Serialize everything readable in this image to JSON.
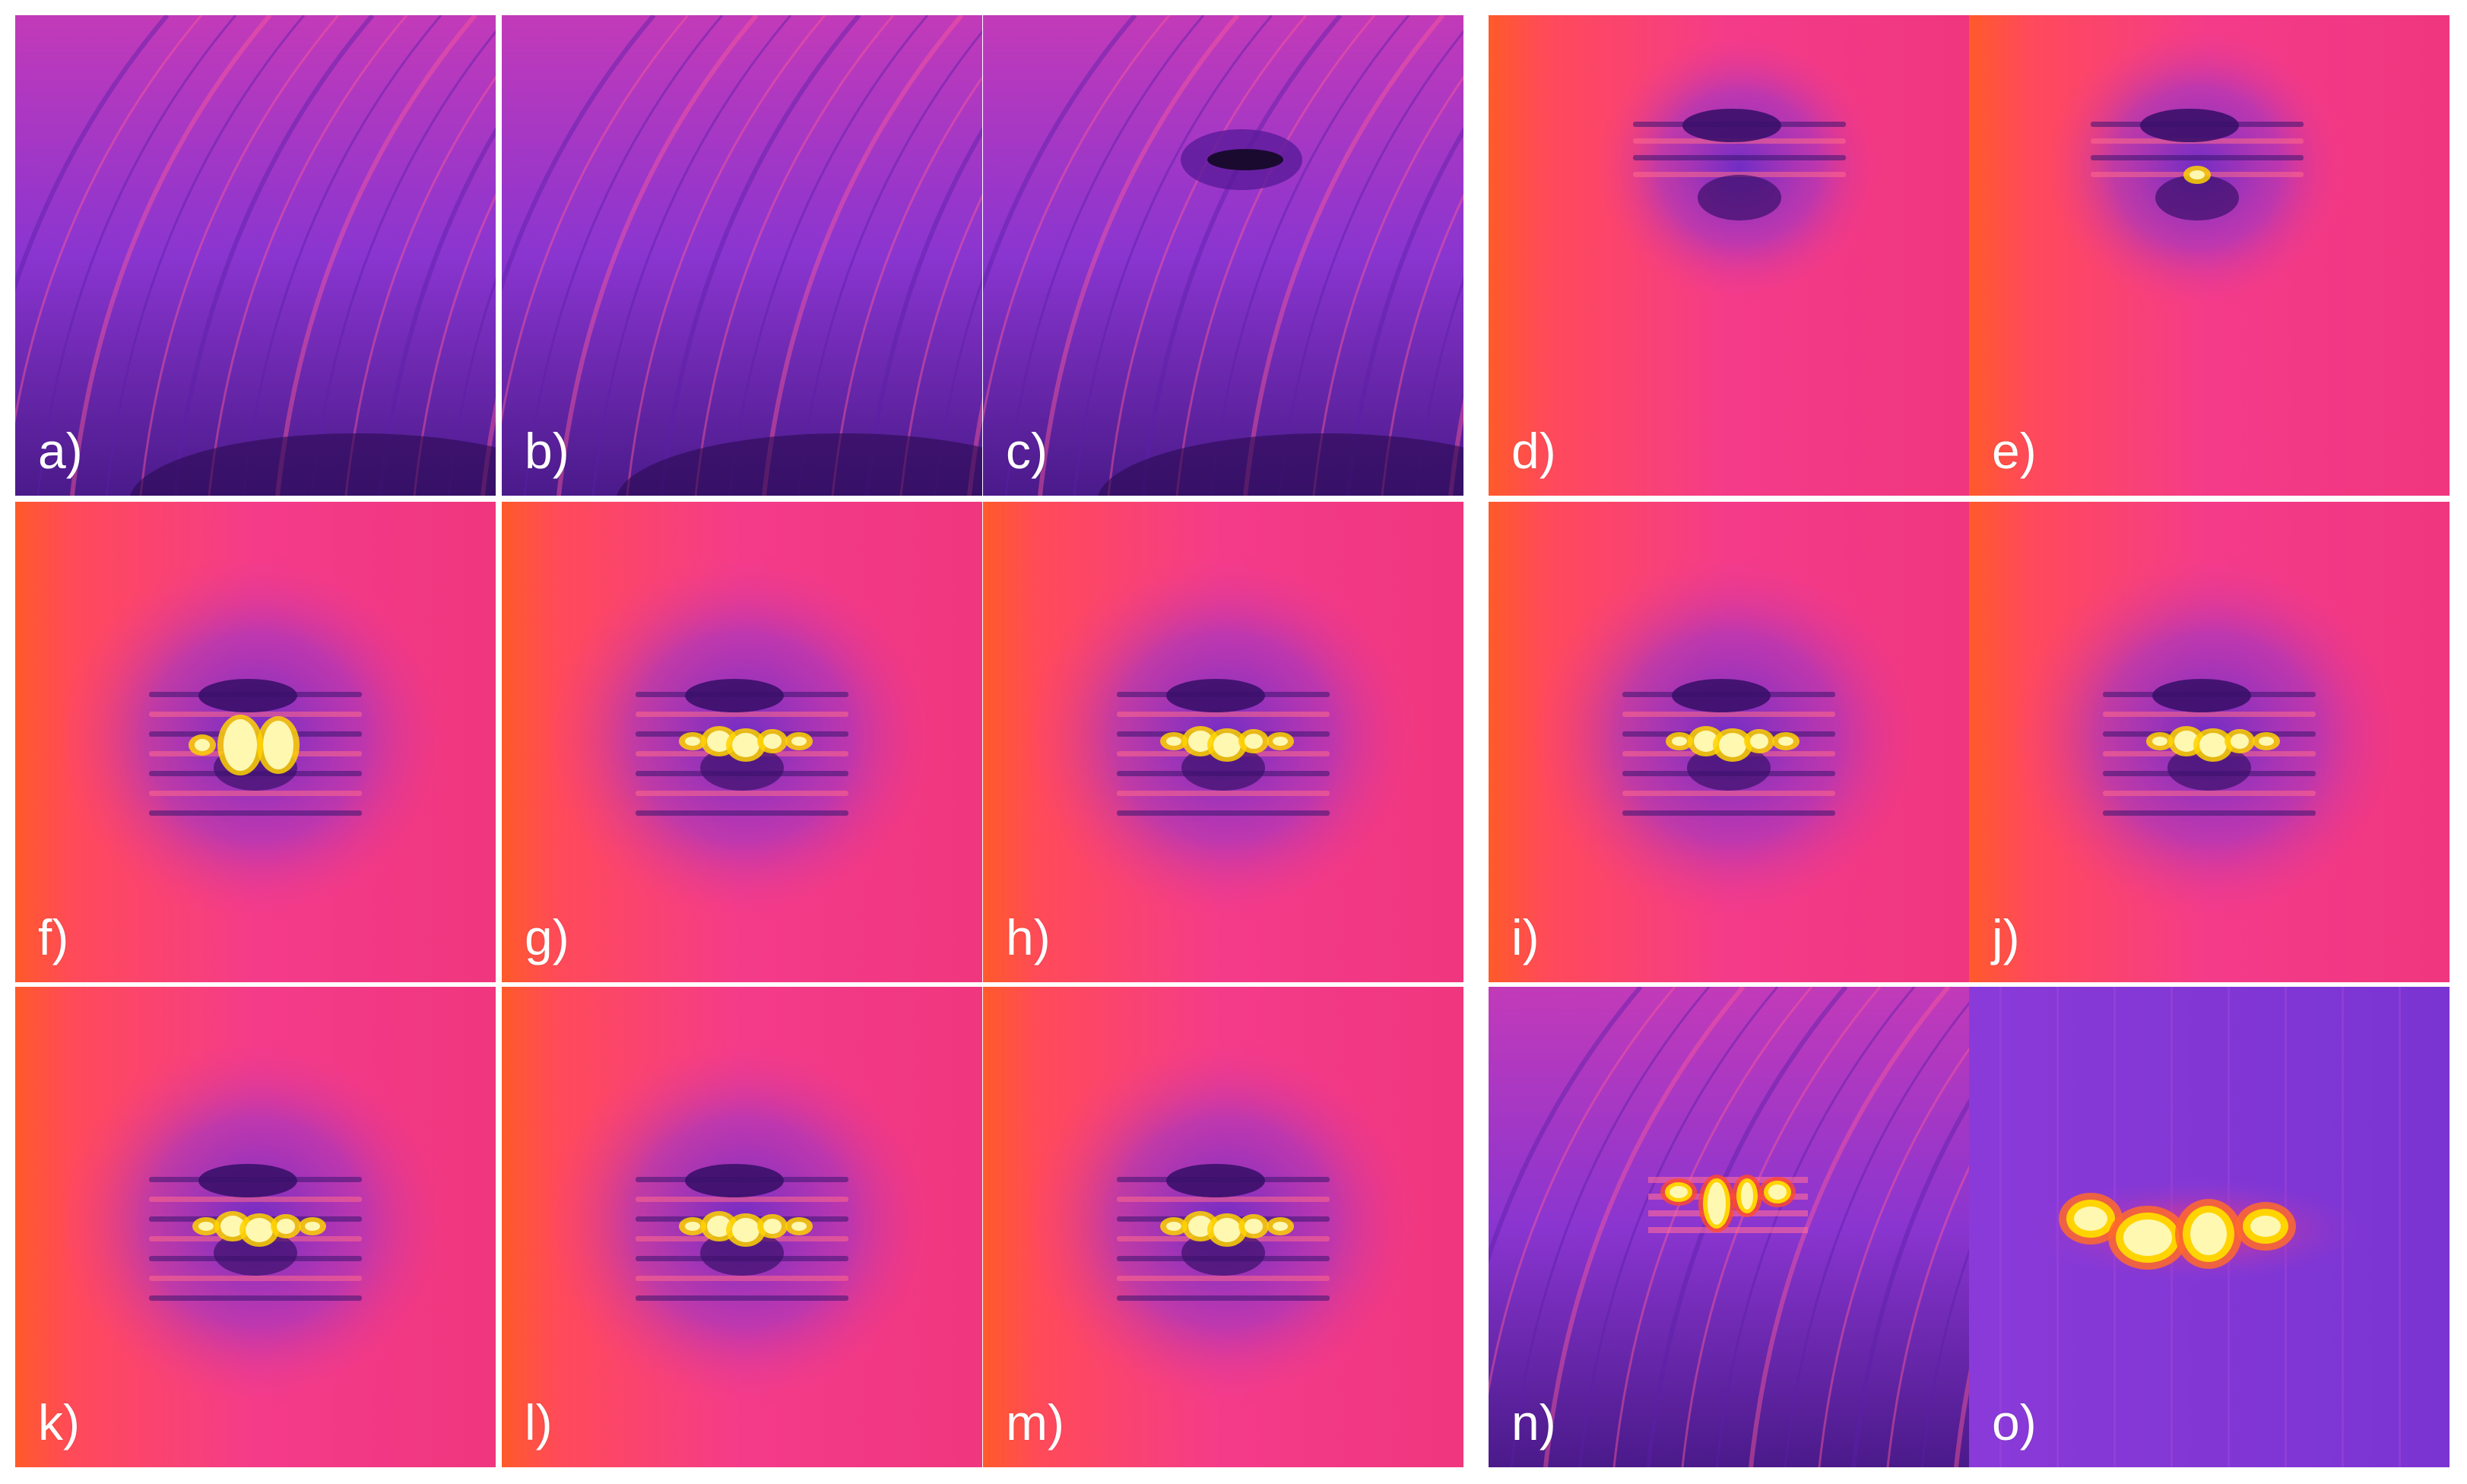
{
  "figure": {
    "panels": [
      {
        "label": "a)",
        "style": "purple-streaks",
        "pattern": "none"
      },
      {
        "label": "b)",
        "style": "purple-streaks",
        "pattern": "none"
      },
      {
        "label": "c)",
        "style": "purple-streaks",
        "pattern": "dark-blob"
      },
      {
        "label": "d)",
        "style": "pink-field",
        "pattern": "weak"
      },
      {
        "label": "e)",
        "style": "pink-field",
        "pattern": "weak-bright"
      },
      {
        "label": "f)",
        "style": "pink-field",
        "pattern": "strong-large"
      },
      {
        "label": "g)",
        "style": "pink-field",
        "pattern": "strong"
      },
      {
        "label": "h)",
        "style": "pink-field",
        "pattern": "strong"
      },
      {
        "label": "i)",
        "style": "pink-field",
        "pattern": "strong"
      },
      {
        "label": "j)",
        "style": "pink-field",
        "pattern": "strong"
      },
      {
        "label": "k)",
        "style": "pink-field",
        "pattern": "strong"
      },
      {
        "label": "l)",
        "style": "pink-field",
        "pattern": "strong"
      },
      {
        "label": "m)",
        "style": "pink-field",
        "pattern": "strong"
      },
      {
        "label": "n)",
        "style": "purple-streaks",
        "pattern": "bright-fringes"
      },
      {
        "label": "o)",
        "style": "purple-smooth",
        "pattern": "bright-blobs"
      }
    ],
    "colors": {
      "pink": "#f43b8a",
      "orange": "#ff5a2a",
      "purple": "#7a2fd6",
      "dark_purple": "#3b0f6a",
      "bright": "#fff8b0"
    }
  }
}
